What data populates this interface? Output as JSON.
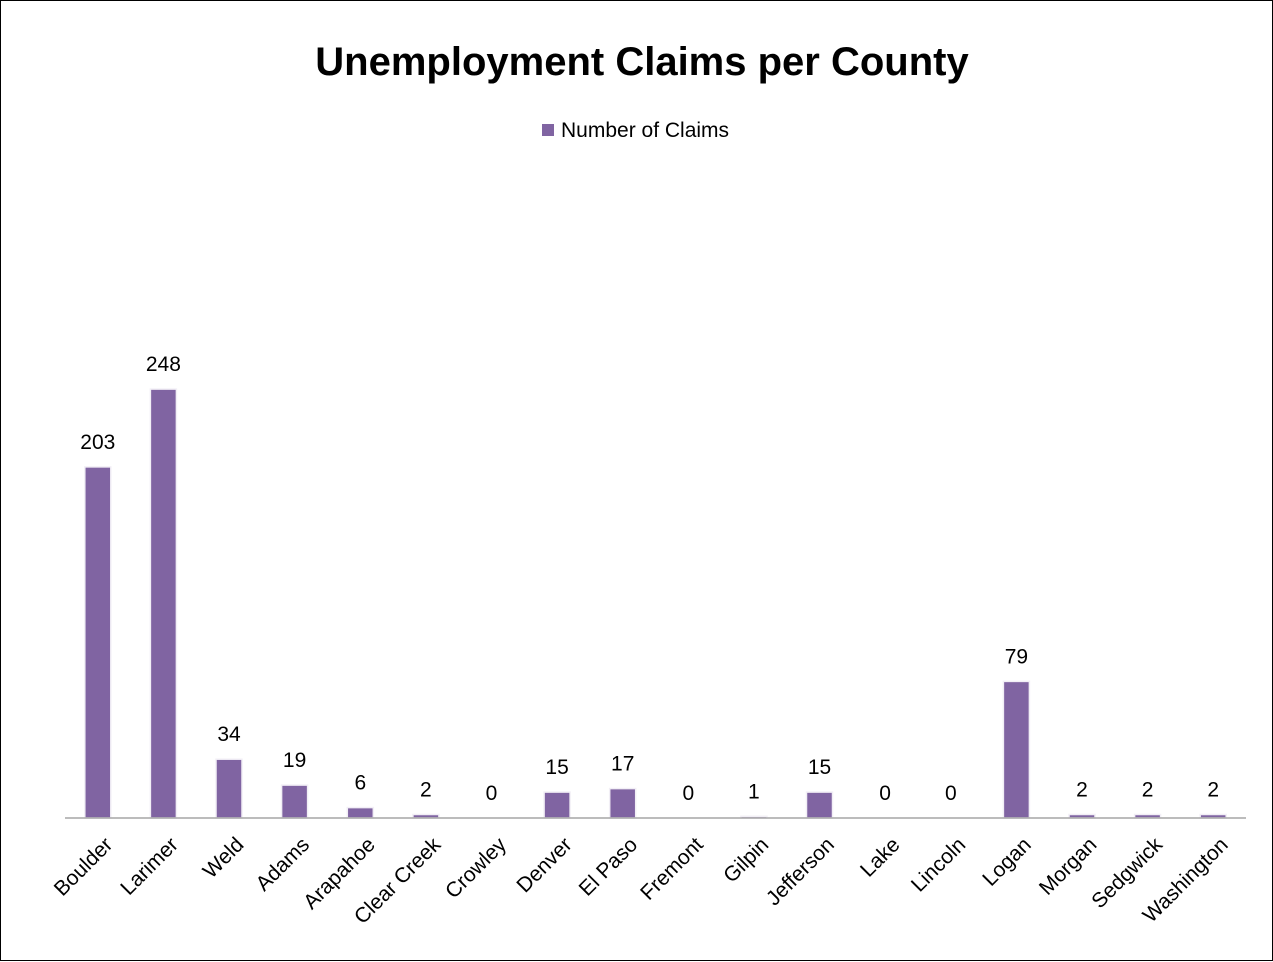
{
  "chart_data": {
    "type": "bar",
    "title": "Unemployment Claims per County",
    "xlabel": "",
    "ylabel": "",
    "categories": [
      "Boulder",
      "Larimer",
      "Weld",
      "Adams",
      "Arapahoe",
      "Clear Creek",
      "Crowley",
      "Denver",
      "El Paso",
      "Fremont",
      "Gilpin",
      "Jefferson",
      "Lake",
      "Lincoln",
      "Logan",
      "Morgan",
      "Sedgwick",
      "Washington"
    ],
    "series": [
      {
        "name": "Number of Claims",
        "color": "#8064a2",
        "values": [
          203,
          248,
          34,
          19,
          6,
          2,
          0,
          15,
          17,
          0,
          1,
          15,
          0,
          0,
          79,
          2,
          2,
          2
        ]
      }
    ],
    "ylim": [
      0,
      255
    ],
    "grid": false,
    "legend_position": "top"
  }
}
